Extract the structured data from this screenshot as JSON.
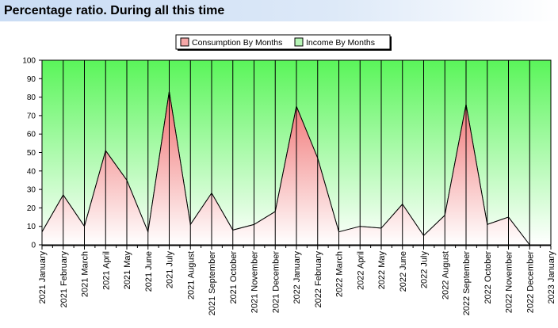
{
  "title": "Percentage ratio. During all this time",
  "chart_data": {
    "type": "area",
    "stacked": true,
    "categories": [
      "2021 January",
      "2021 February",
      "2021 March",
      "2021 April",
      "2021 May",
      "2021 June",
      "2021 July",
      "2021 August",
      "2021 September",
      "2021 October",
      "2021 November",
      "2021 December",
      "2022 January",
      "2022 February",
      "2022 March",
      "2022 April",
      "2022 May",
      "2022 June",
      "2022 July",
      "2022 August",
      "2022 September",
      "2022 October",
      "2022 November",
      "2022 December",
      "2023 January"
    ],
    "series": [
      {
        "name": "Consumption By Months",
        "color": "#f06e6e",
        "values": [
          7,
          27,
          10,
          51,
          35,
          7,
          83,
          11,
          28,
          8,
          11,
          18,
          75,
          47,
          7,
          10,
          9,
          22,
          5,
          16,
          76,
          11,
          15,
          0,
          0
        ]
      },
      {
        "name": "Income By Months",
        "color": "#5af55a",
        "values": [
          93,
          73,
          90,
          49,
          65,
          93,
          17,
          89,
          72,
          92,
          89,
          82,
          25,
          53,
          93,
          90,
          91,
          78,
          95,
          84,
          24,
          89,
          85,
          100,
          100
        ]
      }
    ],
    "ylim": [
      0,
      100
    ],
    "yticks": [
      0,
      10,
      20,
      30,
      40,
      50,
      60,
      70,
      80,
      90,
      100
    ],
    "grid": true,
    "legend": "top-center"
  }
}
